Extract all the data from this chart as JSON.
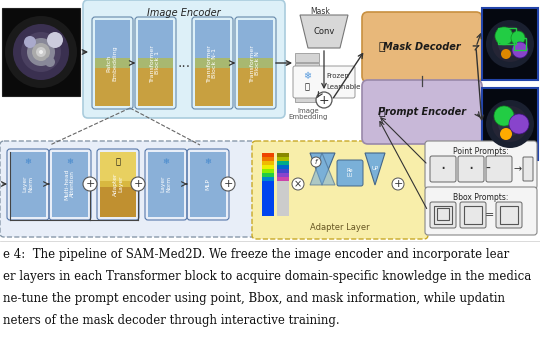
{
  "bg_color": "#ffffff",
  "caption_lines": [
    "e 4:  The pipeline of SAM-Med2D. We freeze the image encoder and incorporate lear",
    "er layers in each Transformer block to acquire domain-specific knowledge in the medica",
    "ne-tune the prompt encoder using point, Bbox, and mask information, while updatin",
    "neters of the mask decoder through interactive training."
  ],
  "caption_fontsize": 8.5,
  "colors": {
    "light_blue_block": "#7baad4",
    "yellow_block_top": "#b8c8e8",
    "yellow_block_bottom": "#d4a840",
    "orange_box": "#e8b87a",
    "gray_box": "#c8c8c8",
    "light_blue_bg": "#d8eef8",
    "yellow_bg": "#f8eea8",
    "arrow_color": "#444444",
    "text_dark": "#1a1a1a",
    "white": "#ffffff",
    "dashed_border": "#888888",
    "prompt_bg": "#d4c8e8"
  }
}
